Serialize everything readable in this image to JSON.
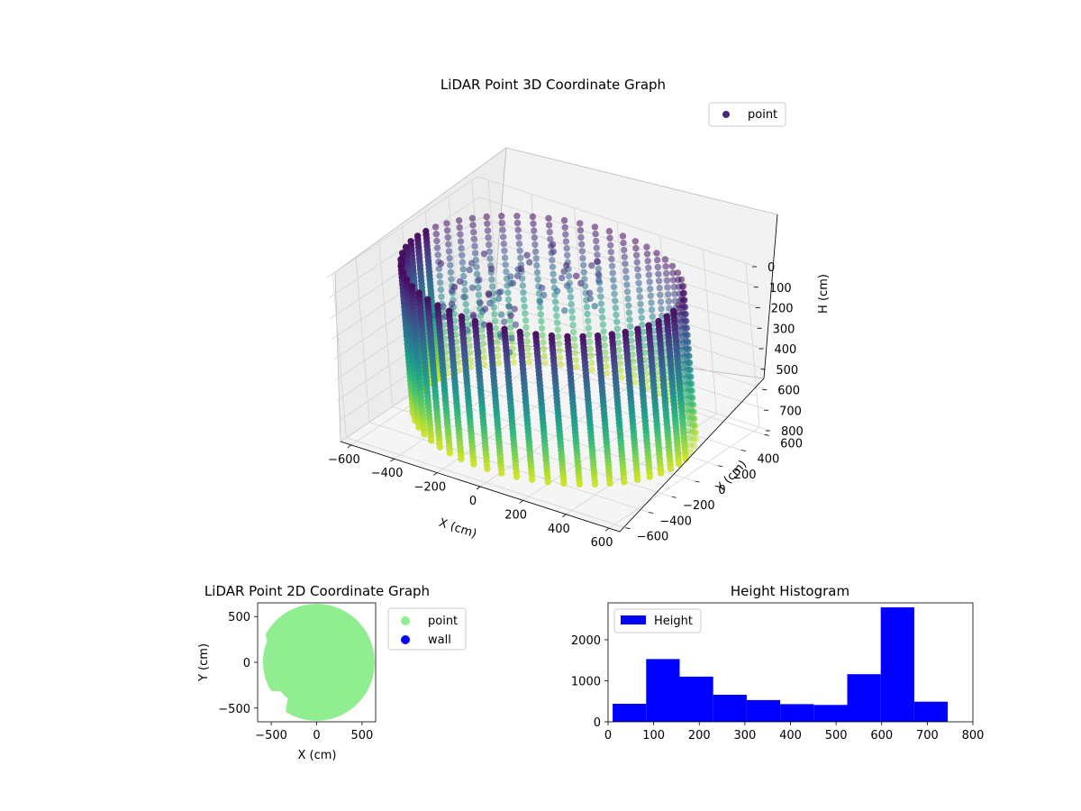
{
  "chart_data": [
    {
      "type": "scatter",
      "title": "LiDAR Point 3D Coordinate Graph",
      "projection": "3d",
      "xlabel": "X (cm)",
      "ylabel": "Y (cm)",
      "zlabel": "H (cm)",
      "xlim": [
        -650,
        650
      ],
      "ylim": [
        -650,
        650
      ],
      "zlim": [
        800,
        0
      ],
      "x_ticks": [
        "−600",
        "−400",
        "−200",
        "0",
        "200",
        "400",
        "600"
      ],
      "y_ticks": [
        "−600",
        "−400",
        "−200",
        "0",
        "200",
        "400",
        "600"
      ],
      "z_ticks": [
        "0",
        "100",
        "200",
        "300",
        "400",
        "500",
        "600",
        "700",
        "800"
      ],
      "z_inverted": true,
      "colormap": "viridis",
      "legend": [
        {
          "label": "point",
          "color": "#482878"
        }
      ],
      "legend_position": "upper-right",
      "grid": true,
      "series": [
        {
          "name": "point",
          "shape": "cylindrical wall of scan columns",
          "radius": 580,
          "h_range": [
            0,
            750
          ],
          "center": [
            0,
            0
          ]
        }
      ]
    },
    {
      "type": "scatter",
      "title": "LiDAR Point 2D Coordinate Graph",
      "xlabel": "X (cm)",
      "ylabel": "Y (cm)",
      "xlim": [
        -650,
        650
      ],
      "ylim": [
        -650,
        650
      ],
      "x_ticks": [
        "−500",
        "0",
        "500"
      ],
      "y_ticks": [
        "−500",
        "0",
        "500"
      ],
      "legend": [
        {
          "label": "point",
          "color": "#90ee90"
        },
        {
          "label": "wall",
          "color": "#0000ff"
        }
      ],
      "legend_position": "outside-right",
      "series": [
        {
          "name": "point",
          "color": "#90ee90",
          "shape": "filled disk",
          "radius": 600
        },
        {
          "name": "wall",
          "color": "#0000ff",
          "points": []
        }
      ]
    },
    {
      "type": "bar",
      "title": "Height Histogram",
      "xlabel": "",
      "ylabel": "",
      "xlim": [
        0,
        800
      ],
      "ylim": [
        0,
        2900
      ],
      "x_ticks": [
        "0",
        "100",
        "200",
        "300",
        "400",
        "500",
        "600",
        "700",
        "800"
      ],
      "y_ticks": [
        "0",
        "1000",
        "2000"
      ],
      "legend": [
        {
          "label": "Height",
          "color": "#0000ff"
        }
      ],
      "legend_position": "upper-left",
      "bin_edges": [
        10,
        83.5,
        157,
        230.5,
        304,
        377.5,
        451,
        524.5,
        598,
        671.5,
        745
      ],
      "counts": [
        440,
        1530,
        1100,
        660,
        530,
        430,
        410,
        1160,
        2790,
        490
      ],
      "color": "#0000ff"
    }
  ]
}
